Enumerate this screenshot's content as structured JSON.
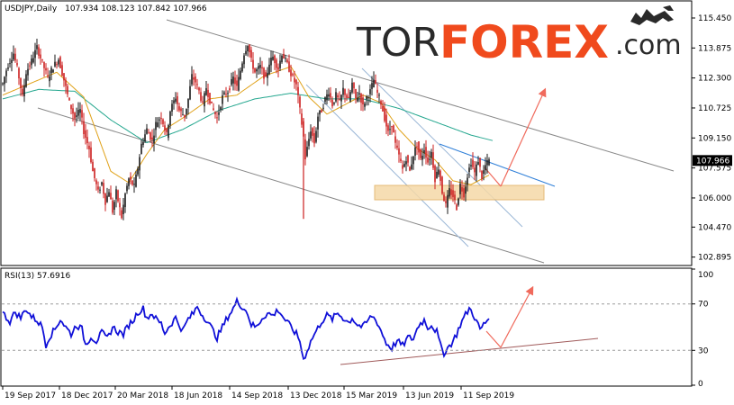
{
  "header": {
    "symbol_info": "USDJPY,Daily",
    "ohlc": "107.934 108.123 107.842 107.966",
    "rsi_label": "RSI(13) 57.6916"
  },
  "brand": {
    "tor": "TOR",
    "forex": "FOREX",
    "com": ".com"
  },
  "current_price": "107.966",
  "colors": {
    "bull": "#1a1a1a",
    "bear": "#cc1e1e",
    "ma_fast": "#e0a21a",
    "ma_slow": "#25a78f",
    "channel": "#888888",
    "blue_line": "#2f7fd8",
    "arrow": "#f06a5c",
    "rsi": "#1010d8",
    "support_zone": "#f5d9a8",
    "rsi_trend": "#a05a5a"
  },
  "chart_data": {
    "type": "candlestick",
    "price_axis": {
      "ticks": [
        "115.450",
        "113.875",
        "112.300",
        "110.725",
        "109.150",
        "107.575",
        "106.000",
        "104.470",
        "102.895"
      ],
      "range": [
        102.5,
        116.3
      ]
    },
    "rsi_axis": {
      "ticks": [
        "100",
        "70",
        "30",
        "0"
      ],
      "levels": [
        70,
        30
      ],
      "range": [
        0,
        100
      ]
    },
    "x_labels": [
      "19 Sep 2017",
      "18 Dec 2017",
      "20 Mar 2018",
      "18 Jun 2018",
      "14 Sep 2018",
      "13 Dec 2018",
      "15 Mar 2019",
      "13 Jun 2019",
      "11 Sep 2019"
    ],
    "close_path": [
      [
        0,
        112.0
      ],
      [
        5,
        112.9
      ],
      [
        12,
        113.6
      ],
      [
        17,
        112.6
      ],
      [
        22,
        111.3
      ],
      [
        26,
        112.6
      ],
      [
        32,
        113.2
      ],
      [
        38,
        113.9
      ],
      [
        44,
        113.1
      ],
      [
        50,
        112.3
      ],
      [
        56,
        112.9
      ],
      [
        62,
        113.3
      ],
      [
        68,
        112.2
      ],
      [
        74,
        111.0
      ],
      [
        80,
        110.2
      ],
      [
        86,
        110.6
      ],
      [
        90,
        109.5
      ],
      [
        96,
        108.6
      ],
      [
        100,
        107.4
      ],
      [
        106,
        106.3
      ],
      [
        110,
        106.8
      ],
      [
        114,
        105.8
      ],
      [
        118,
        106.4
      ],
      [
        122,
        105.3
      ],
      [
        126,
        106.3
      ],
      [
        132,
        105.0
      ],
      [
        136,
        106.2
      ],
      [
        140,
        107.0
      ],
      [
        146,
        106.6
      ],
      [
        150,
        107.6
      ],
      [
        154,
        108.8
      ],
      [
        160,
        109.6
      ],
      [
        166,
        109.0
      ],
      [
        170,
        109.9
      ],
      [
        176,
        110.3
      ],
      [
        182,
        109.3
      ],
      [
        186,
        110.6
      ],
      [
        192,
        111.3
      ],
      [
        196,
        110.6
      ],
      [
        202,
        110.3
      ],
      [
        206,
        111.2
      ],
      [
        210,
        112.4
      ],
      [
        214,
        112.1
      ],
      [
        218,
        111.6
      ],
      [
        222,
        110.9
      ],
      [
        226,
        111.8
      ],
      [
        232,
        110.8
      ],
      [
        238,
        110.2
      ],
      [
        244,
        111.3
      ],
      [
        250,
        111.6
      ],
      [
        256,
        112.3
      ],
      [
        260,
        111.8
      ],
      [
        264,
        112.7
      ],
      [
        268,
        113.6
      ],
      [
        272,
        114.1
      ],
      [
        276,
        113.2
      ],
      [
        280,
        112.6
      ],
      [
        286,
        112.9
      ],
      [
        292,
        112.2
      ],
      [
        296,
        113.1
      ],
      [
        300,
        113.4
      ],
      [
        306,
        112.8
      ],
      [
        310,
        113.6
      ],
      [
        316,
        113.0
      ],
      [
        322,
        112.3
      ],
      [
        326,
        111.9
      ],
      [
        330,
        110.6
      ],
      [
        334,
        109.2
      ],
      [
        336,
        108.1
      ],
      [
        338,
        108.6
      ],
      [
        342,
        109.6
      ],
      [
        346,
        108.9
      ],
      [
        350,
        110.3
      ],
      [
        354,
        110.6
      ],
      [
        358,
        111.2
      ],
      [
        362,
        111.6
      ],
      [
        366,
        110.9
      ],
      [
        370,
        111.4
      ],
      [
        374,
        111.0
      ],
      [
        378,
        111.7
      ],
      [
        384,
        111.1
      ],
      [
        388,
        112.0
      ],
      [
        392,
        111.2
      ],
      [
        396,
        111.5
      ],
      [
        400,
        110.8
      ],
      [
        404,
        111.3
      ],
      [
        408,
        111.6
      ],
      [
        412,
        112.2
      ],
      [
        416,
        111.5
      ],
      [
        420,
        111.0
      ],
      [
        424,
        110.2
      ],
      [
        428,
        109.4
      ],
      [
        432,
        109.9
      ],
      [
        436,
        108.8
      ],
      [
        440,
        108.2
      ],
      [
        444,
        107.5
      ],
      [
        448,
        108.1
      ],
      [
        452,
        107.4
      ],
      [
        456,
        108.3
      ],
      [
        460,
        108.8
      ],
      [
        464,
        108.0
      ],
      [
        468,
        108.6
      ],
      [
        472,
        107.9
      ],
      [
        476,
        108.4
      ],
      [
        480,
        107.0
      ],
      [
        484,
        107.6
      ],
      [
        488,
        106.3
      ],
      [
        492,
        105.6
      ],
      [
        496,
        106.4
      ],
      [
        500,
        106.1
      ],
      [
        504,
        105.5
      ],
      [
        508,
        106.7
      ],
      [
        512,
        106.2
      ],
      [
        516,
        107.2
      ],
      [
        520,
        107.9
      ],
      [
        524,
        107.3
      ],
      [
        528,
        108.0
      ],
      [
        532,
        107.1
      ],
      [
        536,
        107.7
      ],
      [
        540,
        107.97
      ]
    ],
    "ma_fast": [
      [
        0,
        111.4
      ],
      [
        30,
        112.0
      ],
      [
        60,
        112.6
      ],
      [
        90,
        111.3
      ],
      [
        120,
        107.4
      ],
      [
        140,
        106.8
      ],
      [
        160,
        108.3
      ],
      [
        180,
        109.6
      ],
      [
        200,
        110.2
      ],
      [
        230,
        111.2
      ],
      [
        260,
        111.4
      ],
      [
        290,
        112.4
      ],
      [
        320,
        112.9
      ],
      [
        340,
        111.3
      ],
      [
        360,
        110.4
      ],
      [
        380,
        110.9
      ],
      [
        400,
        111.4
      ],
      [
        420,
        111.0
      ],
      [
        440,
        109.6
      ],
      [
        460,
        108.6
      ],
      [
        480,
        108.0
      ],
      [
        500,
        106.9
      ],
      [
        520,
        106.7
      ],
      [
        540,
        107.2
      ]
    ],
    "ma_slow": [
      [
        0,
        111.2
      ],
      [
        40,
        111.7
      ],
      [
        80,
        111.6
      ],
      [
        120,
        110.1
      ],
      [
        160,
        108.9
      ],
      [
        200,
        109.6
      ],
      [
        240,
        110.6
      ],
      [
        280,
        111.2
      ],
      [
        320,
        111.5
      ],
      [
        360,
        111.2
      ],
      [
        400,
        111.2
      ],
      [
        440,
        110.7
      ],
      [
        480,
        110.0
      ],
      [
        520,
        109.3
      ],
      [
        545,
        109.0
      ]
    ],
    "rsi_path": [
      [
        0,
        62
      ],
      [
        8,
        55
      ],
      [
        14,
        63
      ],
      [
        20,
        58
      ],
      [
        26,
        66
      ],
      [
        32,
        59
      ],
      [
        38,
        56
      ],
      [
        44,
        50
      ],
      [
        48,
        35
      ],
      [
        52,
        42
      ],
      [
        58,
        48
      ],
      [
        64,
        57
      ],
      [
        70,
        50
      ],
      [
        76,
        44
      ],
      [
        82,
        52
      ],
      [
        88,
        48
      ],
      [
        92,
        35
      ],
      [
        98,
        42
      ],
      [
        104,
        38
      ],
      [
        110,
        45
      ],
      [
        116,
        40
      ],
      [
        122,
        50
      ],
      [
        128,
        46
      ],
      [
        134,
        44
      ],
      [
        140,
        52
      ],
      [
        146,
        57
      ],
      [
        150,
        63
      ],
      [
        156,
        66
      ],
      [
        160,
        58
      ],
      [
        166,
        62
      ],
      [
        170,
        57
      ],
      [
        176,
        53
      ],
      [
        180,
        45
      ],
      [
        186,
        52
      ],
      [
        192,
        58
      ],
      [
        196,
        52
      ],
      [
        200,
        47
      ],
      [
        206,
        57
      ],
      [
        212,
        62
      ],
      [
        216,
        68
      ],
      [
        222,
        60
      ],
      [
        226,
        57
      ],
      [
        232,
        49
      ],
      [
        238,
        41
      ],
      [
        244,
        50
      ],
      [
        250,
        59
      ],
      [
        256,
        66
      ],
      [
        260,
        72
      ],
      [
        266,
        68
      ],
      [
        272,
        62
      ],
      [
        276,
        52
      ],
      [
        282,
        50
      ],
      [
        288,
        58
      ],
      [
        294,
        62
      ],
      [
        300,
        60
      ],
      [
        306,
        65
      ],
      [
        312,
        58
      ],
      [
        318,
        52
      ],
      [
        322,
        48
      ],
      [
        326,
        44
      ],
      [
        330,
        38
      ],
      [
        334,
        22
      ],
      [
        338,
        30
      ],
      [
        344,
        41
      ],
      [
        350,
        49
      ],
      [
        354,
        55
      ],
      [
        360,
        60
      ],
      [
        366,
        57
      ],
      [
        372,
        62
      ],
      [
        378,
        58
      ],
      [
        384,
        54
      ],
      [
        388,
        58
      ],
      [
        394,
        52
      ],
      [
        400,
        50
      ],
      [
        406,
        56
      ],
      [
        410,
        60
      ],
      [
        416,
        54
      ],
      [
        420,
        47
      ],
      [
        426,
        36
      ],
      [
        432,
        32
      ],
      [
        438,
        38
      ],
      [
        444,
        34
      ],
      [
        450,
        41
      ],
      [
        456,
        40
      ],
      [
        462,
        52
      ],
      [
        468,
        56
      ],
      [
        472,
        50
      ],
      [
        476,
        52
      ],
      [
        482,
        46
      ],
      [
        486,
        34
      ],
      [
        490,
        28
      ],
      [
        494,
        32
      ],
      [
        500,
        38
      ],
      [
        504,
        44
      ],
      [
        508,
        52
      ],
      [
        512,
        58
      ],
      [
        518,
        66
      ],
      [
        522,
        62
      ],
      [
        526,
        55
      ],
      [
        530,
        48
      ],
      [
        534,
        52
      ],
      [
        540,
        58
      ]
    ]
  }
}
